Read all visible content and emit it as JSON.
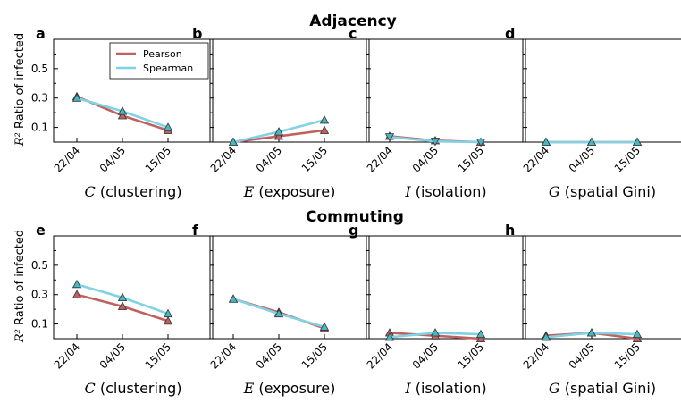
{
  "figure": {
    "titles": [
      "Adjacency",
      "Commuting"
    ],
    "ylabel_prefix": "R²",
    "ylabel": "Ratio of infected"
  },
  "legend": {
    "pearson": "Pearson",
    "spearman": "Spearman"
  },
  "colors": {
    "pearson": "#c0615f",
    "spearman": "#7fd3e4",
    "marker": "#49b6c4"
  },
  "chart_data": [
    {
      "type": "line",
      "panel": "a",
      "group": "Adjacency",
      "var": "C",
      "xlabel": "(clustering)",
      "categories": [
        "22/04",
        "04/05",
        "15/05"
      ],
      "yticks": [
        0.1,
        0.3,
        0.5
      ],
      "ylim": [
        0,
        0.7
      ],
      "series": [
        {
          "name": "Pearson",
          "values": [
            0.31,
            0.18,
            0.08
          ]
        },
        {
          "name": "Spearman",
          "values": [
            0.3,
            0.21,
            0.1
          ]
        }
      ]
    },
    {
      "type": "line",
      "panel": "b",
      "group": "Adjacency",
      "var": "E",
      "xlabel": "(exposure)",
      "categories": [
        "22/04",
        "04/05",
        "15/05"
      ],
      "yticks": [
        0.1,
        0.3,
        0.5
      ],
      "ylim": [
        0,
        0.7
      ],
      "series": [
        {
          "name": "Pearson",
          "values": [
            0.0,
            0.04,
            0.08
          ]
        },
        {
          "name": "Spearman",
          "values": [
            0.0,
            0.07,
            0.15
          ]
        }
      ]
    },
    {
      "type": "line",
      "panel": "c",
      "group": "Adjacency",
      "var": "I",
      "xlabel": "(isolation)",
      "categories": [
        "22/04",
        "04/05",
        "15/05"
      ],
      "yticks": [
        0.1,
        0.3,
        0.5
      ],
      "ylim": [
        0,
        0.7
      ],
      "series": [
        {
          "name": "Pearson",
          "values": [
            0.04,
            0.01,
            0.0
          ]
        },
        {
          "name": "Spearman",
          "values": [
            0.035,
            0.005,
            0.0
          ]
        }
      ]
    },
    {
      "type": "line",
      "panel": "d",
      "group": "Adjacency",
      "var": "G",
      "xlabel": "(spatial Gini)",
      "categories": [
        "22/04",
        "04/05",
        "15/05"
      ],
      "yticks": [
        0.1,
        0.3,
        0.5
      ],
      "ylim": [
        0,
        0.7
      ],
      "series": [
        {
          "name": "Pearson",
          "values": [
            0.0,
            0.0,
            0.0
          ]
        },
        {
          "name": "Spearman",
          "values": [
            0.0,
            0.0,
            0.0
          ]
        }
      ]
    },
    {
      "type": "line",
      "panel": "e",
      "group": "Commuting",
      "var": "C",
      "xlabel": "(clustering)",
      "categories": [
        "22/04",
        "04/05",
        "15/05"
      ],
      "yticks": [
        0.1,
        0.3,
        0.5
      ],
      "ylim": [
        0,
        0.7
      ],
      "series": [
        {
          "name": "Pearson",
          "values": [
            0.3,
            0.22,
            0.12
          ]
        },
        {
          "name": "Spearman",
          "values": [
            0.37,
            0.28,
            0.17
          ]
        }
      ]
    },
    {
      "type": "line",
      "panel": "f",
      "group": "Commuting",
      "var": "E",
      "xlabel": "(exposure)",
      "categories": [
        "22/04",
        "04/05",
        "15/05"
      ],
      "yticks": [
        0.1,
        0.3,
        0.5
      ],
      "ylim": [
        0,
        0.7
      ],
      "series": [
        {
          "name": "Pearson",
          "values": [
            0.27,
            0.18,
            0.07
          ]
        },
        {
          "name": "Spearman",
          "values": [
            0.27,
            0.17,
            0.08
          ]
        }
      ]
    },
    {
      "type": "line",
      "panel": "g",
      "group": "Commuting",
      "var": "I",
      "xlabel": "(isolation)",
      "categories": [
        "22/04",
        "04/05",
        "15/05"
      ],
      "yticks": [
        0.1,
        0.3,
        0.5
      ],
      "ylim": [
        0,
        0.7
      ],
      "series": [
        {
          "name": "Pearson",
          "values": [
            0.04,
            0.02,
            0.0
          ]
        },
        {
          "name": "Spearman",
          "values": [
            0.01,
            0.04,
            0.03
          ]
        }
      ]
    },
    {
      "type": "line",
      "panel": "h",
      "group": "Commuting",
      "var": "G",
      "xlabel": "(spatial Gini)",
      "categories": [
        "22/04",
        "04/05",
        "15/05"
      ],
      "yticks": [
        0.1,
        0.3,
        0.5
      ],
      "ylim": [
        0,
        0.7
      ],
      "series": [
        {
          "name": "Pearson",
          "values": [
            0.02,
            0.04,
            0.0
          ]
        },
        {
          "name": "Spearman",
          "values": [
            0.01,
            0.04,
            0.03
          ]
        }
      ]
    }
  ]
}
